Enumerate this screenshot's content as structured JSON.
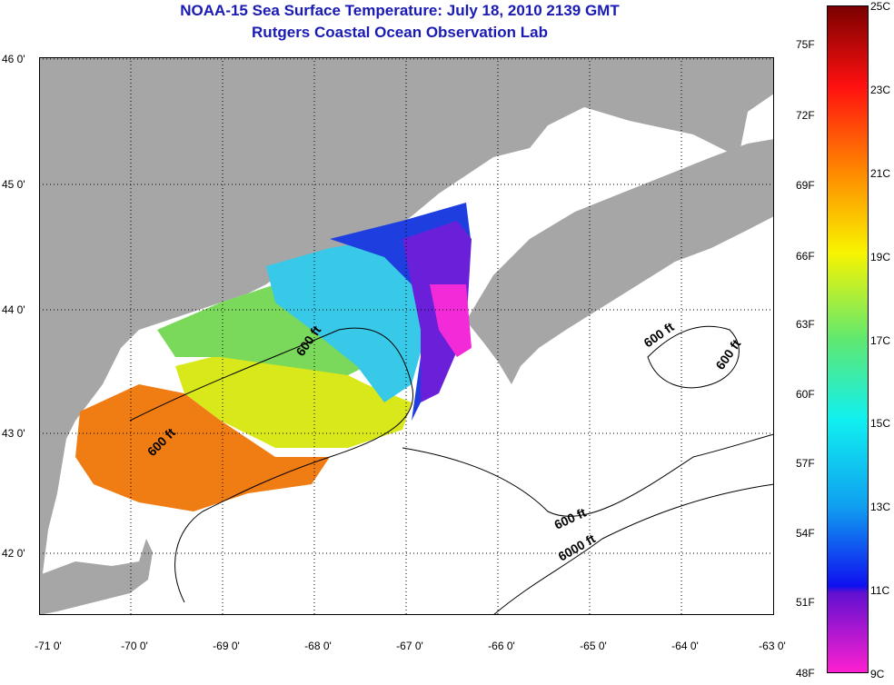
{
  "title_line1": "NOAA-15 Sea Surface Temperature:  July 18, 2010 2139 GMT",
  "title_line2": "Rutgers Coastal Ocean Observation Lab",
  "lat_labels": [
    "46 0'",
    "45 0'",
    "44 0'",
    "43 0'",
    "42 0'"
  ],
  "lon_labels": [
    "-71 0'",
    "-70 0'",
    "-69 0'",
    "-68 0'",
    "-67 0'",
    "-66 0'",
    "-65 0'",
    "-64 0'",
    "-63 0'"
  ],
  "contour_labels": [
    "600 ft",
    "600 ft",
    "600 ft",
    "600 ft",
    "600 ft",
    "6000 ft"
  ],
  "colorbar": {
    "fahrenheit": [
      "75F",
      "72F",
      "69F",
      "66F",
      "63F",
      "60F",
      "57F",
      "54F",
      "51F",
      "48F"
    ],
    "celsius": [
      "25C",
      "23C",
      "21C",
      "19C",
      "17C",
      "15C",
      "13C",
      "11C",
      "9C"
    ],
    "range_c": [
      9,
      25
    ]
  },
  "colors": {
    "land": "#a6a6a6",
    "title": "#1a1ab4",
    "grid": "#000000"
  }
}
